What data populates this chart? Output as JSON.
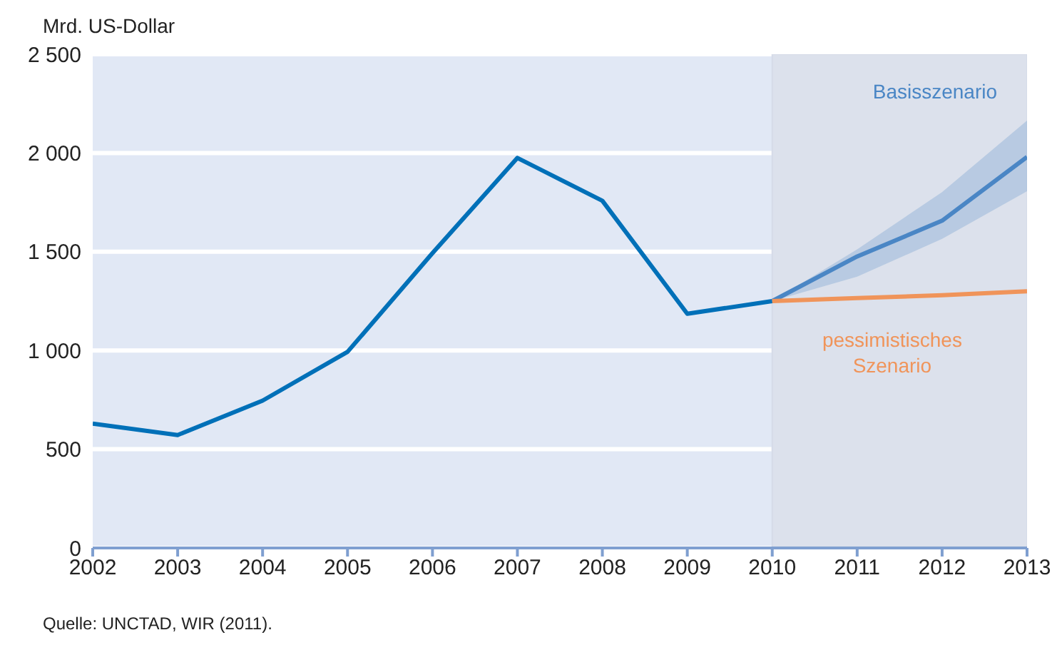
{
  "chart_data": {
    "type": "line",
    "ylabel": "Mrd. US-Dollar",
    "annotations": [
      "Quelle: UNCTAD, WIR (2011)."
    ],
    "xlim": [
      2002,
      2013
    ],
    "xticks": [
      2002,
      2003,
      2004,
      2005,
      2006,
      2007,
      2008,
      2009,
      2010,
      2011,
      2012,
      2013
    ],
    "ylim": [
      0,
      2500
    ],
    "yticks": [
      0,
      500,
      {
        "value": 1000,
        "label": "1 000"
      },
      {
        "value": 1500,
        "label": "1 500"
      },
      {
        "value": 2000,
        "label": "2 000"
      },
      {
        "value": 2500,
        "label": "2 500"
      }
    ],
    "grid": "y",
    "bands": [
      {
        "axis": "x",
        "from": 2010,
        "to": 2013,
        "color": "#dce1ec"
      }
    ],
    "series": [
      {
        "color": "#0070b8",
        "x": [
          2002,
          2003,
          2004,
          2005,
          2006,
          2007,
          2008,
          2009,
          2010
        ],
        "values": [
          630,
          572,
          746,
          993,
          1493,
          1975,
          1758,
          1186,
          1250
        ]
      },
      {
        "name": "Basisszenario",
        "color": "#4a86c5",
        "x": [
          2010,
          2011,
          2012,
          2013
        ],
        "values": [
          1250,
          1476,
          1657,
          1980
        ],
        "lower": [
          1250,
          1374,
          1565,
          1806
        ],
        "upper": [
          1250,
          1512,
          1802,
          2164
        ]
      },
      {
        "name": "pessimistisches Szenario",
        "color": "#f0945a",
        "x": [
          2010,
          2011,
          2012,
          2013
        ],
        "values": [
          1250,
          1265,
          1280,
          1300
        ]
      }
    ]
  }
}
